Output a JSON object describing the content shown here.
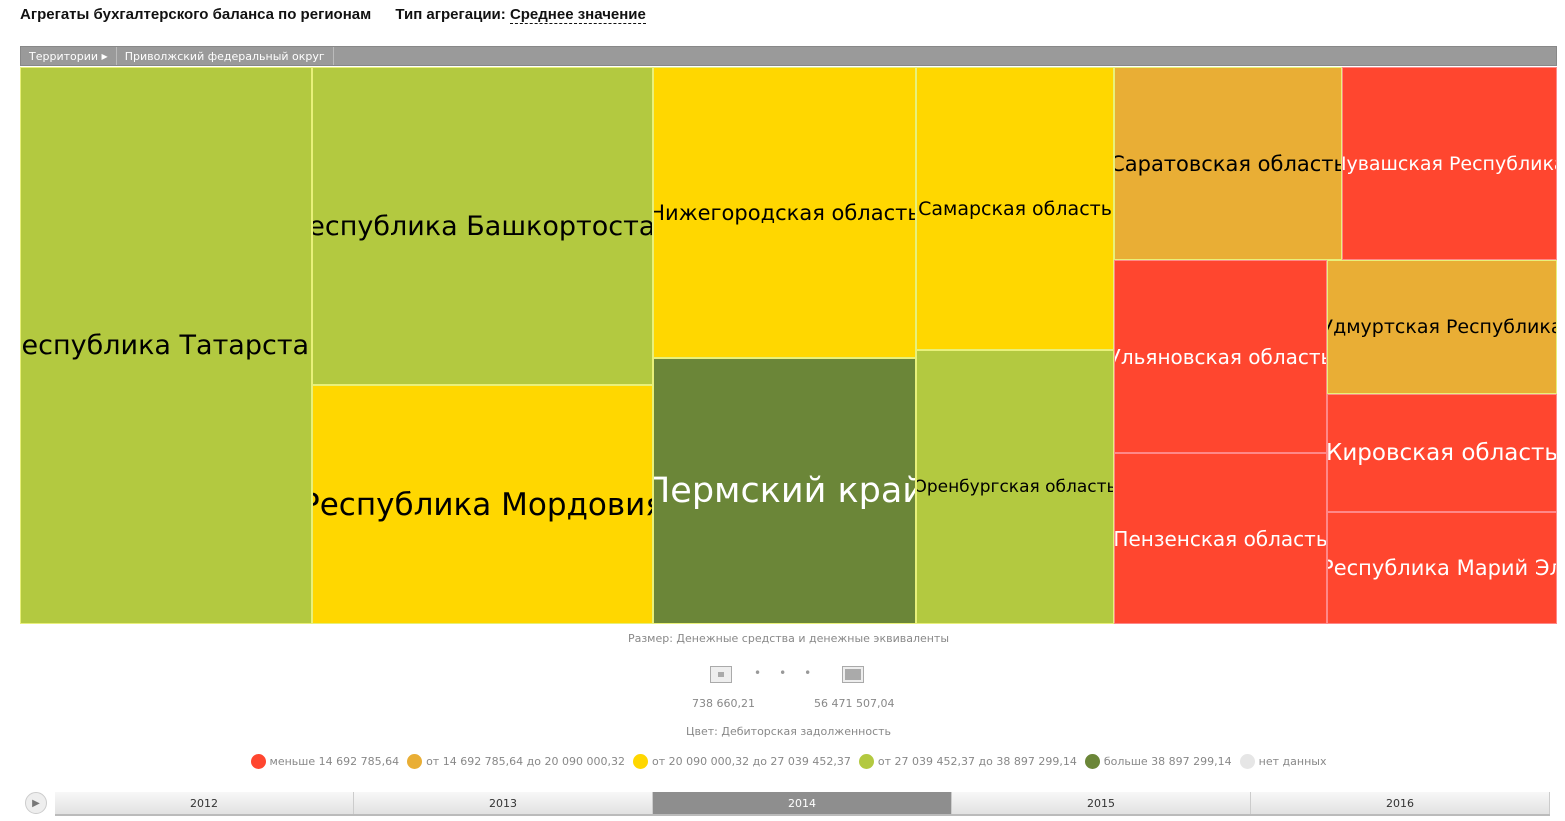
{
  "header": {
    "title": "Агрегаты бухгалтерского баланса по регионам",
    "agg_label": "Тип агрегации:",
    "agg_value": "Среднее значение"
  },
  "breadcrumb": [
    "Территории",
    "Приволжский федеральный округ"
  ],
  "tiles": [
    "Республика Татарстан",
    "Республика Башкортостан",
    "Республика Мордовия",
    "Нижегородская область",
    "Пермский край",
    "Самарская область",
    "Оренбургская область",
    "Саратовская область",
    "Чувашская Республика",
    "Ульяновская область",
    "Пензенская область",
    "Удмуртская Республика",
    "Кировская область",
    "Республика Марий Эл"
  ],
  "size_legend": {
    "title": "Размер: Денежные средства и денежные эквиваленты",
    "min": "738 660,21",
    "max": "56 471 507,04"
  },
  "color_legend": {
    "title": "Цвет: Дебиторская задолженность",
    "items": [
      {
        "label": "меньше 14 692 785,64",
        "color": "#ff462f"
      },
      {
        "label": "от 14 692 785,64 до 20 090 000,32",
        "color": "#e9ae35"
      },
      {
        "label": "от 20 090 000,32 до 27 039 452,37",
        "color": "#ffd700"
      },
      {
        "label": "от 27 039 452,37 до 38 897 299,14",
        "color": "#b3c940"
      },
      {
        "label": "больше 38 897 299,14",
        "color": "#6b8638"
      },
      {
        "label": "нет данных",
        "color": "#e6e6e6"
      }
    ]
  },
  "timeline": {
    "years": [
      "2012",
      "2013",
      "2014",
      "2015",
      "2016"
    ],
    "active": "2014"
  }
}
